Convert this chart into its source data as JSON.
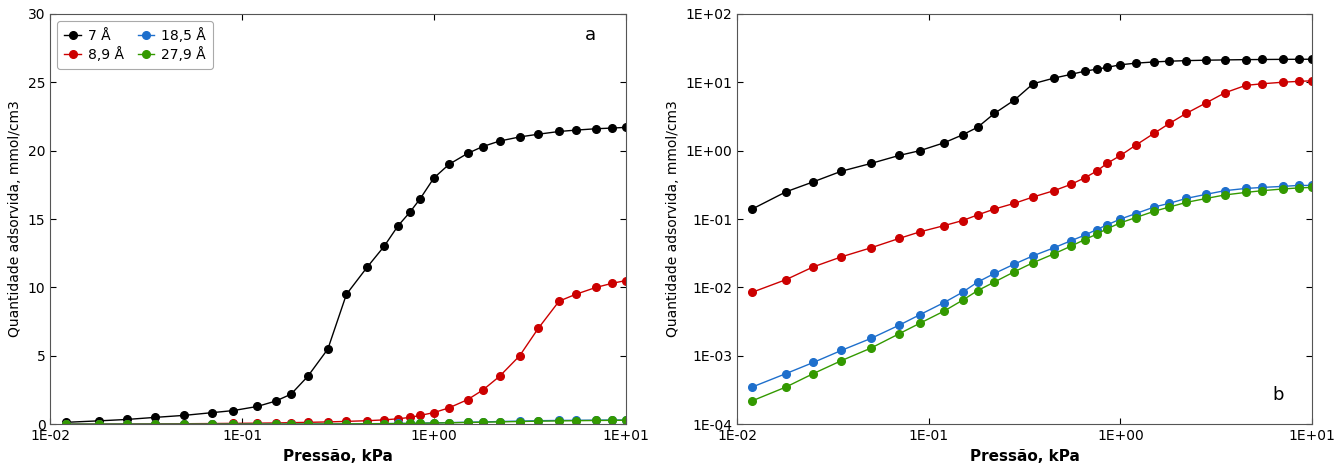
{
  "series": {
    "7A": {
      "label": "7 Å",
      "color": "#000000",
      "pressure": [
        0.012,
        0.018,
        0.025,
        0.035,
        0.05,
        0.07,
        0.09,
        0.12,
        0.15,
        0.18,
        0.22,
        0.28,
        0.35,
        0.45,
        0.55,
        0.65,
        0.75,
        0.85,
        1.0,
        1.2,
        1.5,
        1.8,
        2.2,
        2.8,
        3.5,
        4.5,
        5.5,
        7.0,
        8.5,
        10.0
      ],
      "quantity": [
        0.14,
        0.25,
        0.35,
        0.5,
        0.65,
        0.85,
        1.0,
        1.3,
        1.7,
        2.2,
        3.5,
        5.5,
        9.5,
        11.5,
        13.0,
        14.5,
        15.5,
        16.5,
        18.0,
        19.0,
        19.8,
        20.3,
        20.7,
        21.0,
        21.2,
        21.4,
        21.5,
        21.6,
        21.65,
        21.7
      ]
    },
    "89A": {
      "label": "8,9 Å",
      "color": "#cc0000",
      "pressure": [
        0.012,
        0.018,
        0.025,
        0.035,
        0.05,
        0.07,
        0.09,
        0.12,
        0.15,
        0.18,
        0.22,
        0.28,
        0.35,
        0.45,
        0.55,
        0.65,
        0.75,
        0.85,
        1.0,
        1.2,
        1.5,
        1.8,
        2.2,
        2.8,
        3.5,
        4.5,
        5.5,
        7.0,
        8.5,
        10.0
      ],
      "quantity": [
        0.0085,
        0.013,
        0.02,
        0.028,
        0.038,
        0.052,
        0.065,
        0.08,
        0.095,
        0.115,
        0.14,
        0.17,
        0.21,
        0.26,
        0.32,
        0.4,
        0.5,
        0.65,
        0.85,
        1.2,
        1.8,
        2.5,
        3.5,
        5.0,
        7.0,
        9.0,
        9.5,
        10.0,
        10.3,
        10.5
      ]
    },
    "185A": {
      "label": "18,5 Å",
      "color": "#1e6fcc",
      "pressure": [
        0.012,
        0.018,
        0.025,
        0.035,
        0.05,
        0.07,
        0.09,
        0.12,
        0.15,
        0.18,
        0.22,
        0.28,
        0.35,
        0.45,
        0.55,
        0.65,
        0.75,
        0.85,
        1.0,
        1.2,
        1.5,
        1.8,
        2.2,
        2.8,
        3.5,
        4.5,
        5.5,
        7.0,
        8.5,
        10.0
      ],
      "quantity": [
        0.00035,
        0.00055,
        0.0008,
        0.0012,
        0.0018,
        0.0028,
        0.004,
        0.006,
        0.0085,
        0.012,
        0.016,
        0.022,
        0.029,
        0.038,
        0.048,
        0.058,
        0.07,
        0.082,
        0.1,
        0.12,
        0.15,
        0.17,
        0.2,
        0.23,
        0.26,
        0.28,
        0.29,
        0.3,
        0.31,
        0.31
      ]
    },
    "279A": {
      "label": "27,9 Å",
      "color": "#339900",
      "pressure": [
        0.012,
        0.018,
        0.025,
        0.035,
        0.05,
        0.07,
        0.09,
        0.12,
        0.15,
        0.18,
        0.22,
        0.28,
        0.35,
        0.45,
        0.55,
        0.65,
        0.75,
        0.85,
        1.0,
        1.2,
        1.5,
        1.8,
        2.2,
        2.8,
        3.5,
        4.5,
        5.5,
        7.0,
        8.5,
        10.0
      ],
      "quantity": [
        0.00022,
        0.00035,
        0.00055,
        0.00085,
        0.0013,
        0.0021,
        0.003,
        0.0045,
        0.0065,
        0.009,
        0.012,
        0.017,
        0.023,
        0.031,
        0.04,
        0.05,
        0.06,
        0.072,
        0.088,
        0.105,
        0.13,
        0.15,
        0.175,
        0.2,
        0.225,
        0.245,
        0.26,
        0.275,
        0.285,
        0.29
      ]
    }
  },
  "xlabel": "Pressão, kPa",
  "ylabel": "Quantidade adsorvida, mmol/cm3",
  "xlim_log": [
    -2,
    1
  ],
  "ylim_linear": [
    0,
    30
  ],
  "ylim_log": [
    0.0001,
    100.0
  ],
  "label_a": "a",
  "label_b": "b",
  "yticks_linear": [
    0,
    5,
    10,
    15,
    20,
    25,
    30
  ],
  "background_color": "#ffffff"
}
